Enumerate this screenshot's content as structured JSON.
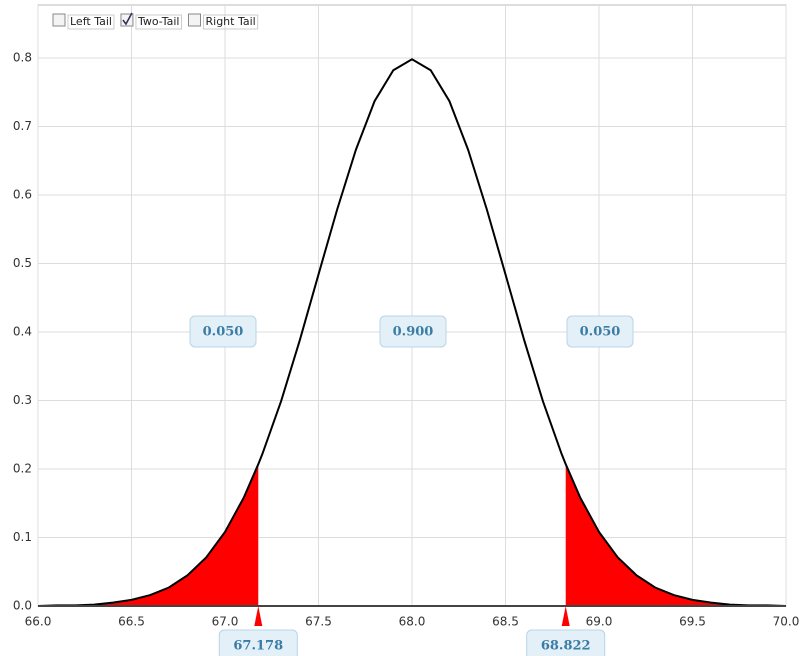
{
  "chart_data": {
    "type": "area_tails",
    "controls": [
      {
        "label": "Left Tail",
        "checked": false
      },
      {
        "label": "Two-Tail",
        "checked": true
      },
      {
        "label": "Right Tail",
        "checked": false
      }
    ],
    "x": [
      66.0,
      66.1,
      66.2,
      66.3,
      66.4,
      66.5,
      66.6,
      66.7,
      66.8,
      66.9,
      67.0,
      67.1,
      67.178,
      67.2,
      67.3,
      67.4,
      67.5,
      67.6,
      67.7,
      67.8,
      67.9,
      68.0,
      68.1,
      68.2,
      68.3,
      68.4,
      68.5,
      68.6,
      68.7,
      68.8,
      68.822,
      68.9,
      69.0,
      69.1,
      69.2,
      69.3,
      69.4,
      69.5,
      69.6,
      69.7,
      69.8,
      69.9,
      70.0
    ],
    "values": [
      0.0,
      0.001,
      0.001,
      0.002,
      0.005,
      0.009,
      0.016,
      0.027,
      0.045,
      0.071,
      0.108,
      0.158,
      0.207,
      0.222,
      0.299,
      0.388,
      0.484,
      0.579,
      0.666,
      0.737,
      0.782,
      0.798,
      0.782,
      0.737,
      0.666,
      0.579,
      0.484,
      0.388,
      0.299,
      0.222,
      0.207,
      0.158,
      0.108,
      0.071,
      0.045,
      0.027,
      0.016,
      0.009,
      0.005,
      0.002,
      0.001,
      0.001,
      0.0
    ],
    "color": "#000000",
    "tail_color": "#ff0000",
    "critical_values": [
      67.178,
      68.822
    ],
    "areas": [
      {
        "value": 0.05,
        "label": "0.050"
      },
      {
        "value": 0.9,
        "label": "0.900"
      },
      {
        "value": 0.05,
        "label": "0.050"
      }
    ],
    "xlim": [
      66,
      70
    ],
    "xticks": [
      {
        "value": 66,
        "label": "66.0"
      },
      66.5,
      {
        "value": 67,
        "label": "67.0"
      },
      67.5,
      {
        "value": 68,
        "label": "68.0"
      },
      68.5,
      {
        "value": 69,
        "label": "69.0"
      },
      69.5,
      {
        "value": 70,
        "label": "70.0"
      }
    ],
    "ylim": [
      0,
      0.87
    ],
    "yticks": [
      {
        "value": 0,
        "label": "0.0"
      },
      0.1,
      0.2,
      0.3,
      0.4,
      0.5,
      0.6,
      0.7,
      0.8
    ],
    "grid": true
  }
}
